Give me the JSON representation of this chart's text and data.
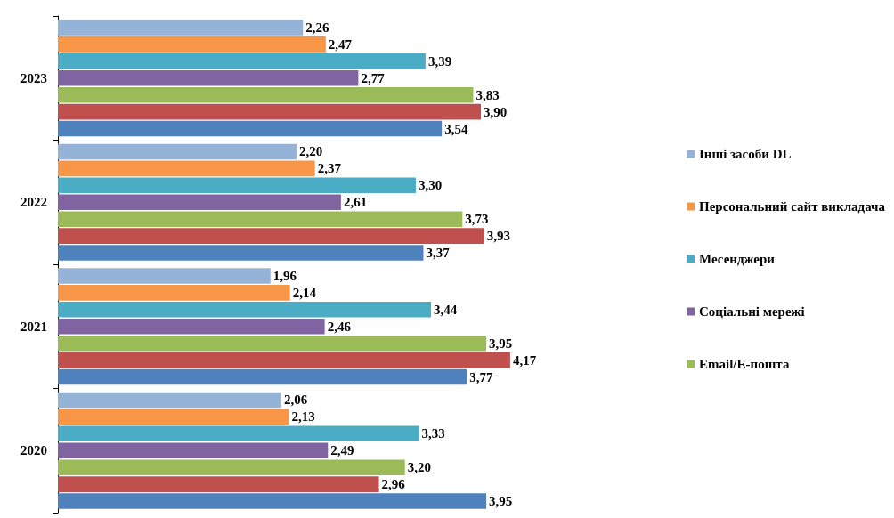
{
  "chart_data": {
    "type": "bar",
    "orientation": "horizontal",
    "categories": [
      "2023",
      "2022",
      "2021",
      "2020"
    ],
    "tick_labels": "y",
    "legend": "right",
    "series": [
      {
        "name": "Інші засоби DL",
        "color": "#95b3d7",
        "values": [
          2.26,
          2.2,
          1.96,
          2.06
        ],
        "value_labels": [
          "2,26",
          "2,20",
          "1,96",
          "2,06"
        ]
      },
      {
        "name": "Персональний сайт викладача",
        "color": "#f79646",
        "values": [
          2.47,
          2.37,
          2.14,
          2.13
        ],
        "value_labels": [
          "2,47",
          "2,37",
          "2,14",
          "2,13"
        ]
      },
      {
        "name": "Месенджери",
        "color": "#4bacc6",
        "values": [
          3.39,
          3.3,
          3.44,
          3.33
        ],
        "value_labels": [
          "3,39",
          "3,30",
          "3,44",
          "3,33"
        ]
      },
      {
        "name": "Соціальні мережі",
        "color": "#8064a2",
        "values": [
          2.77,
          2.61,
          2.46,
          2.49
        ],
        "value_labels": [
          "2,77",
          "2,61",
          "2,46",
          "2,49"
        ]
      },
      {
        "name": "Email/E-пошта",
        "color": "#9bbb59",
        "values": [
          3.83,
          3.73,
          3.95,
          3.2
        ],
        "value_labels": [
          "3,83",
          "3,73",
          "3,95",
          "3,20"
        ]
      },
      {
        "color": "#c0504d",
        "values": [
          3.9,
          3.93,
          4.17,
          2.96
        ],
        "value_labels": [
          "3,90",
          "3,93",
          "4,17",
          "2,96"
        ]
      },
      {
        "color": "#4f81bd",
        "values": [
          3.54,
          3.37,
          3.77,
          3.95
        ],
        "value_labels": [
          "3,54",
          "3,37",
          "3,77",
          "3,95"
        ]
      }
    ]
  }
}
